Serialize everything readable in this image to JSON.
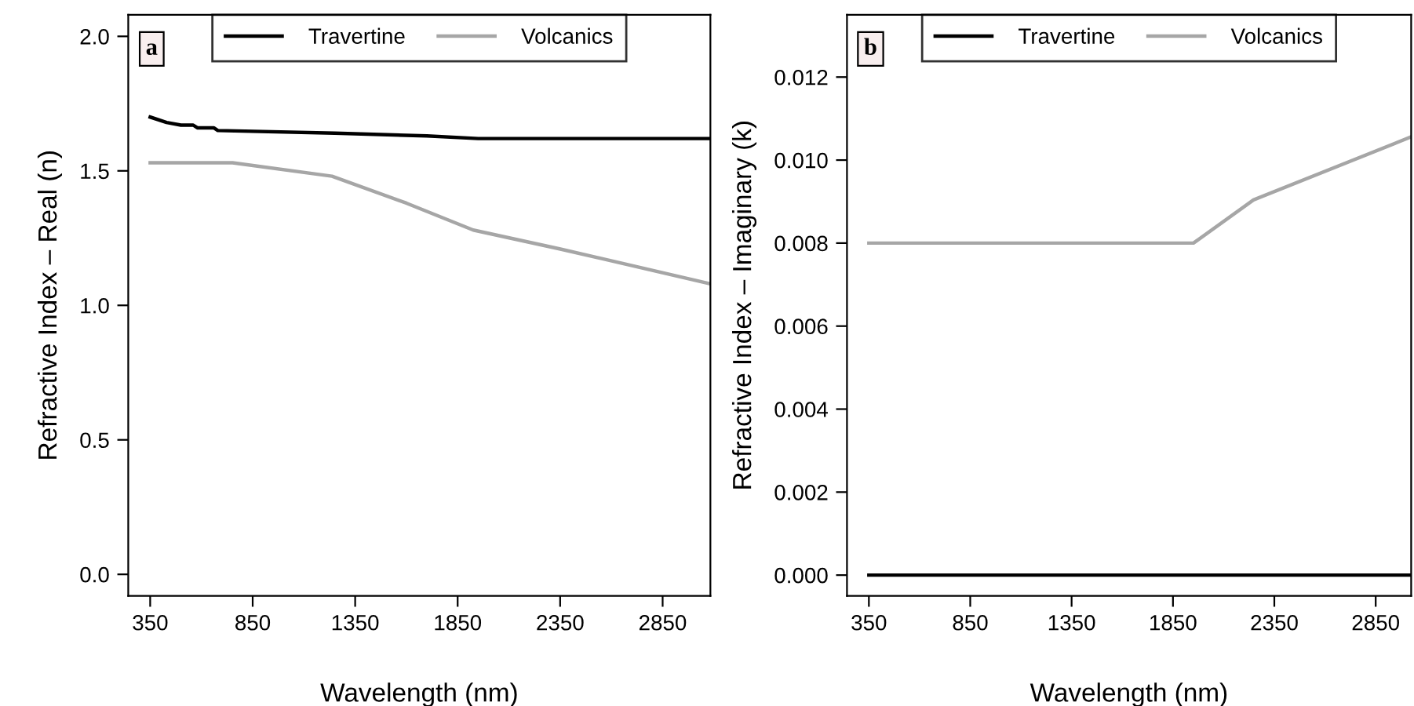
{
  "chart_data": [
    {
      "type": "line",
      "xlabel": "Wavelength (nm)",
      "ylabel": "Refractive Index – Real (n)",
      "annotations": [
        "a"
      ],
      "xlim": [
        243,
        3083
      ],
      "xticks": [
        350,
        850,
        1350,
        1850,
        2350,
        2850
      ],
      "ylim": [
        -0.08,
        2.08
      ],
      "yticks": [
        {
          "value": 0,
          "label": "0.0"
        },
        0.5,
        {
          "value": 1,
          "label": "1.0"
        },
        1.5,
        {
          "value": 2,
          "label": "2.0"
        }
      ],
      "grid": false,
      "legend": "top",
      "line_style": "solid",
      "marker": "none",
      "series": [
        {
          "name": "Travertine",
          "color": "#000000",
          "x": [
            350,
            430,
            500,
            560,
            580,
            660,
            680,
            1250,
            1700,
            1950,
            3083
          ],
          "values": [
            1.7,
            1.68,
            1.67,
            1.67,
            1.66,
            1.66,
            1.65,
            1.64,
            1.63,
            1.62,
            1.62
          ]
        },
        {
          "name": "Volcanics",
          "color": "#a6a6a6",
          "x": [
            350,
            752,
            1237,
            1600,
            1926,
            2347,
            3083
          ],
          "values": [
            1.53,
            1.53,
            1.48,
            1.38,
            1.28,
            1.21,
            1.08
          ]
        }
      ]
    },
    {
      "type": "line",
      "xlabel": "Wavelength (nm)",
      "ylabel": "Refractive Index – Imaginary (k)",
      "annotations": [
        "b"
      ],
      "xlim": [
        242,
        3025
      ],
      "xticks": [
        350,
        850,
        1350,
        1850,
        2350,
        2850
      ],
      "ylim": [
        -0.0005,
        0.0135
      ],
      "yticks": [
        {
          "value": 0,
          "label": "0.000"
        },
        {
          "value": 0.002,
          "label": "0.002"
        },
        {
          "value": 0.004,
          "label": "0.004"
        },
        {
          "value": 0.006,
          "label": "0.006"
        },
        {
          "value": 0.008,
          "label": "0.008"
        },
        {
          "value": 0.01,
          "label": "0.010"
        },
        {
          "value": 0.012,
          "label": "0.012"
        }
      ],
      "grid": false,
      "legend": "top",
      "line_style": "solid",
      "marker": "none",
      "series": [
        {
          "name": "Travertine",
          "color": "#000000",
          "x": [
            350,
            3025
          ],
          "values": [
            0,
            0
          ]
        },
        {
          "name": "Volcanics",
          "color": "#a6a6a6",
          "x": [
            350,
            1951,
            2247,
            3025
          ],
          "values": [
            0.008,
            0.008,
            0.00904,
            0.01056
          ]
        }
      ]
    }
  ]
}
